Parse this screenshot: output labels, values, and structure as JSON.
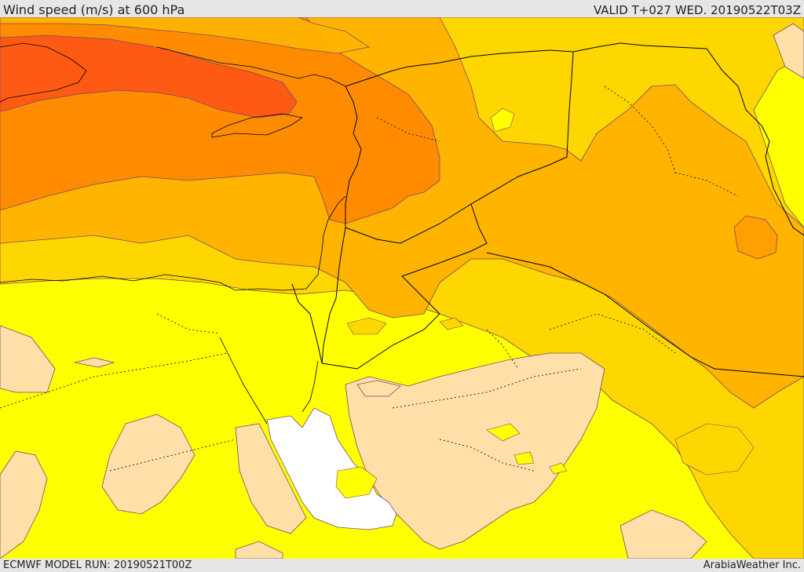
{
  "header": {
    "title": "Wind speed (m/s) at 600 hPa",
    "valid_time": "VALID T+027 WED. 20190522T03Z"
  },
  "footer": {
    "model_run": "ECMWF MODEL RUN: 20190521T00Z",
    "credit": "ArabiaWeather Inc."
  },
  "map": {
    "colors": {
      "calm_sea": "#ffffff",
      "light": "#ffe0a8",
      "yellow": "#ffff00",
      "gold": "#ffd700",
      "amber": "#ffb400",
      "orange": "#ff8c00",
      "red_orange": "#ff5a14",
      "contour_line": "#7a4a66",
      "border_line": "#000000"
    }
  }
}
